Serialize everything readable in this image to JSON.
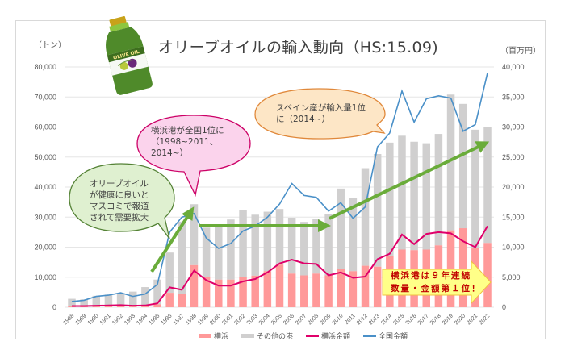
{
  "title": "オリーブオイルの輸入動向（HS:15.09)",
  "axes": {
    "left_unit": "（トン）",
    "right_unit": "（百万円）",
    "left_ticks": [
      "0",
      "10,000",
      "20,000",
      "30,000",
      "40,000",
      "50,000",
      "60,000",
      "70,000",
      "80,000"
    ],
    "right_ticks": [
      "0",
      "5,000",
      "10,000",
      "15,000",
      "20,000",
      "25,000",
      "30,000",
      "35,000",
      "40,000"
    ]
  },
  "legend": {
    "yokohama": "横浜",
    "other_ports": "その他の港",
    "yokohama_value": "横浜金額",
    "national_value": "全国金額"
  },
  "callouts": {
    "health": "オリーブオイル\nが健康に良いと\nマスコミで報道\nされて需要拡大",
    "yokohama_first": "横浜港が全国1位に\n（1998~2011、\n2014~）",
    "spain_first": "スペイン産が輸入量1位\nに（2014~）",
    "banner": "横浜港は９年連続\n数量・金額第１位！"
  },
  "colors": {
    "yokohama_bar": "#ff9999",
    "other_bar": "#d0cfcf",
    "yokohama_line": "#e0006a",
    "national_line": "#4a90c8",
    "arrow": "#6aac3a",
    "banner_bg": "#ffff88",
    "banner_text": "#c00000"
  },
  "icons": {
    "bottle": "olive-oil-bottle-icon"
  },
  "bottle_label": "OLIVE OIL",
  "chart_data": {
    "type": "bar",
    "title": "オリーブオイルの輸入動向（HS:15.09)",
    "xlabel": "",
    "ylabel": "（トン）",
    "y2label": "（百万円）",
    "ylim": [
      0,
      80000
    ],
    "y2lim": [
      0,
      40000
    ],
    "legend_position": "bottom",
    "grid": true,
    "categories": [
      "1988",
      "1989",
      "1990",
      "1991",
      "1992",
      "1993",
      "1994",
      "1995",
      "1996",
      "1997",
      "1998",
      "1999",
      "2000",
      "2001",
      "2002",
      "2003",
      "2004",
      "2005",
      "2006",
      "2007",
      "2008",
      "2009",
      "2010",
      "2011",
      "2012",
      "2013",
      "2014",
      "2015",
      "2016",
      "2017",
      "2018",
      "2019",
      "2020",
      "2021",
      "2022"
    ],
    "series": [
      {
        "name": "横浜",
        "type": "stacked-bar",
        "axis": "left",
        "values": [
          500,
          400,
          500,
          500,
          600,
          500,
          600,
          1000,
          4800,
          4500,
          14000,
          10000,
          9200,
          9200,
          10200,
          10500,
          12000,
          14200,
          11200,
          10600,
          11200,
          10600,
          12800,
          12000,
          13800,
          13500,
          17000,
          19200,
          19000,
          19200,
          20600,
          25600,
          26300,
          19800,
          21400
        ]
      },
      {
        "name": "その他の港",
        "type": "stacked-bar",
        "axis": "left",
        "values": [
          2300,
          2200,
          3300,
          3700,
          4000,
          4700,
          6100,
          8200,
          13400,
          24000,
          20300,
          16500,
          17500,
          20000,
          22100,
          20300,
          19800,
          18500,
          18600,
          17800,
          18300,
          20400,
          26700,
          24500,
          32500,
          37500,
          37800,
          37900,
          36100,
          35400,
          37100,
          45200,
          41400,
          39300,
          38500
        ]
      },
      {
        "name": "横浜金額",
        "type": "line",
        "axis": "right",
        "values": [
          200,
          200,
          250,
          300,
          350,
          250,
          300,
          650,
          3300,
          2900,
          6100,
          4500,
          3600,
          3600,
          4300,
          4700,
          5800,
          7300,
          7900,
          7300,
          7200,
          5300,
          5800,
          4900,
          5100,
          8000,
          8900,
          12100,
          10500,
          12200,
          12500,
          12300,
          11000,
          10000,
          13500
        ]
      },
      {
        "name": "全国金額",
        "type": "line",
        "axis": "right",
        "values": [
          950,
          1150,
          1800,
          2000,
          2400,
          1800,
          2200,
          3800,
          12500,
          15000,
          15600,
          11500,
          9800,
          10600,
          12700,
          13500,
          15000,
          17200,
          20600,
          18600,
          18300,
          16000,
          17400,
          14800,
          16700,
          26700,
          29000,
          36000,
          30800,
          34700,
          35200,
          34800,
          29300,
          30400,
          39000
        ]
      }
    ],
    "annotations": [
      "オリーブオイルが健康に良いとマスコミで報道されて需要拡大",
      "横浜港が全国1位に（1998~2011、2014~）",
      "スペイン産が輸入量1位に（2014~）",
      "横浜港は９年連続数量・金額第１位！"
    ]
  }
}
